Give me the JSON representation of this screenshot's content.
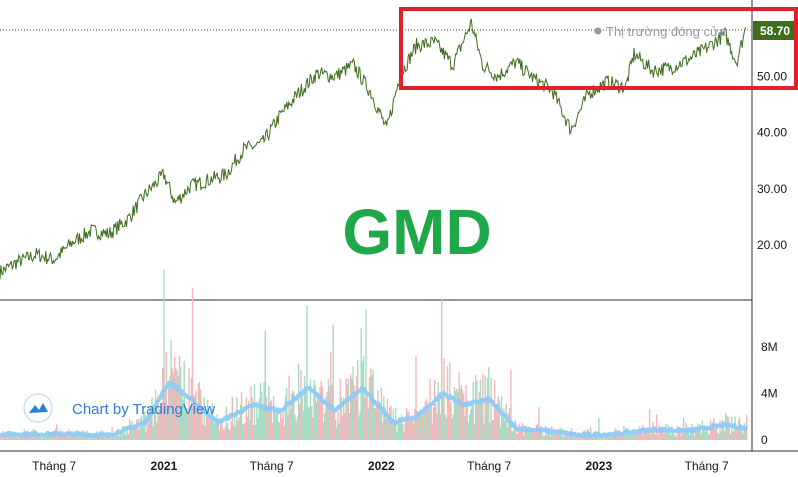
{
  "symbol": "GMD",
  "market_status": "Thị trường đóng cửa",
  "last_price_label": "58.70",
  "watermark": {
    "text": "Chart by TradingView",
    "icon": "tradingview-cloud-icon"
  },
  "colors": {
    "price_line": "#3e6e1d",
    "last_price_badge": "#3e6e1d",
    "highlight_box": "#e0202a",
    "symbol_text": "#1fa84a",
    "volume_up": "#a5dcc3",
    "volume_down": "#f5b6b9",
    "volume_ma": "#8ecaf5",
    "watermark": "#2a7fd8"
  },
  "chart_data": [
    {
      "type": "line",
      "name": "price",
      "y_ticks": [
        "20.00",
        "30.00",
        "40.00",
        "50.00"
      ],
      "ylim": [
        12,
        60
      ],
      "last_value": 58.7,
      "points": [
        [
          "2020-04-01",
          15.2
        ],
        [
          "2020-05-01",
          17.0
        ],
        [
          "2020-06-01",
          18.3
        ],
        [
          "2020-07-01",
          17.4
        ],
        [
          "2020-08-01",
          20.5
        ],
        [
          "2020-09-01",
          22.5
        ],
        [
          "2020-10-01",
          22.0
        ],
        [
          "2020-11-01",
          24.5
        ],
        [
          "2020-12-01",
          29.0
        ],
        [
          "2021-01-01",
          32.5
        ],
        [
          "2021-01-20",
          27.5
        ],
        [
          "2021-02-15",
          30.5
        ],
        [
          "2021-03-15",
          31.5
        ],
        [
          "2021-04-15",
          32.5
        ],
        [
          "2021-05-15",
          37.0
        ],
        [
          "2021-06-15",
          38.0
        ],
        [
          "2021-07-15",
          43.0
        ],
        [
          "2021-08-15",
          47.0
        ],
        [
          "2021-09-15",
          50.5
        ],
        [
          "2021-10-15",
          50.0
        ],
        [
          "2021-11-15",
          52.0
        ],
        [
          "2021-12-15",
          47.0
        ],
        [
          "2022-01-10",
          40.5
        ],
        [
          "2022-02-01",
          50.0
        ],
        [
          "2022-03-01",
          55.5
        ],
        [
          "2022-04-01",
          56.0
        ],
        [
          "2022-05-01",
          52.0
        ],
        [
          "2022-06-01",
          59.5
        ],
        [
          "2022-06-20",
          52.0
        ],
        [
          "2022-07-15",
          50.0
        ],
        [
          "2022-08-15",
          52.5
        ],
        [
          "2022-09-15",
          49.5
        ],
        [
          "2022-10-15",
          47.5
        ],
        [
          "2022-11-15",
          40.5
        ],
        [
          "2022-12-15",
          47.0
        ],
        [
          "2023-01-15",
          49.0
        ],
        [
          "2023-02-15",
          48.0
        ],
        [
          "2023-03-01",
          54.0
        ],
        [
          "2023-04-01",
          51.0
        ],
        [
          "2023-05-01",
          51.5
        ],
        [
          "2023-06-01",
          53.0
        ],
        [
          "2023-07-01",
          55.0
        ],
        [
          "2023-08-01",
          57.5
        ],
        [
          "2023-08-20",
          52.5
        ],
        [
          "2023-09-05",
          58.7
        ]
      ]
    },
    {
      "type": "bar",
      "name": "volume",
      "y_ticks": [
        "8M",
        "4M",
        "0"
      ],
      "ylim": [
        0,
        11.5
      ],
      "unit": "M",
      "moving_average": [
        [
          "2020-04-01",
          0.5
        ],
        [
          "2020-08-01",
          0.5
        ],
        [
          "2020-10-01",
          0.4
        ],
        [
          "2020-12-01",
          1.5
        ],
        [
          "2021-01-10",
          5.0
        ],
        [
          "2021-02-15",
          3.5
        ],
        [
          "2021-04-01",
          1.5
        ],
        [
          "2021-06-01",
          3.0
        ],
        [
          "2021-07-15",
          2.5
        ],
        [
          "2021-09-01",
          4.5
        ],
        [
          "2021-10-15",
          2.5
        ],
        [
          "2021-12-01",
          4.5
        ],
        [
          "2022-01-20",
          1.5
        ],
        [
          "2022-03-01",
          2.0
        ],
        [
          "2022-04-15",
          4.0
        ],
        [
          "2022-05-20",
          3.0
        ],
        [
          "2022-07-01",
          3.5
        ],
        [
          "2022-08-15",
          1.0
        ],
        [
          "2022-10-01",
          0.8
        ],
        [
          "2022-12-01",
          0.4
        ],
        [
          "2023-02-01",
          0.5
        ],
        [
          "2023-04-01",
          0.9
        ],
        [
          "2023-06-01",
          0.8
        ],
        [
          "2023-08-01",
          1.3
        ],
        [
          "2023-09-05",
          1.0
        ]
      ]
    }
  ],
  "time_axis": {
    "labels": [
      {
        "text": "Tháng 7",
        "date": "2020-07-01",
        "bold": false
      },
      {
        "text": "2021",
        "date": "2021-01-01",
        "bold": true
      },
      {
        "text": "Tháng 7",
        "date": "2021-07-01",
        "bold": false
      },
      {
        "text": "2022",
        "date": "2022-01-01",
        "bold": true
      },
      {
        "text": "Tháng 7",
        "date": "2022-07-01",
        "bold": false
      },
      {
        "text": "2023",
        "date": "2023-01-01",
        "bold": true
      },
      {
        "text": "Tháng 7",
        "date": "2023-07-01",
        "bold": false
      }
    ]
  }
}
